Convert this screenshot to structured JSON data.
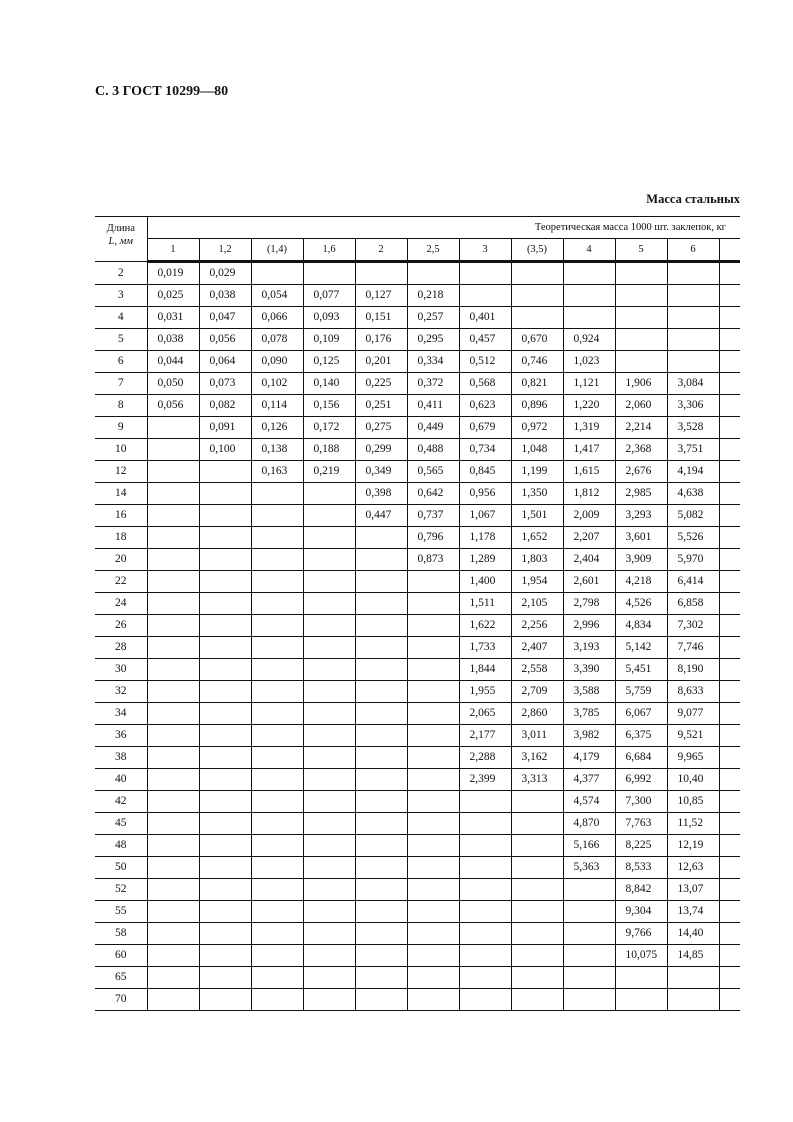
{
  "header": {
    "title": "С. 3 ГОСТ 10299—80"
  },
  "caption": "Масса стальных",
  "table": {
    "length_header": [
      "Длина",
      "L, мм"
    ],
    "group_header": "Теоретическая масса 1000 шт. заклепок, кг",
    "diameters": [
      "1",
      "1,2",
      "(1,4)",
      "1,6",
      "2",
      "2,5",
      "3",
      "(3,5)",
      "4",
      "5",
      "6",
      ""
    ],
    "rows": [
      {
        "L": "2",
        "v": [
          "0,019",
          "0,029",
          "",
          "",
          "",
          "",
          "",
          "",
          "",
          "",
          ""
        ]
      },
      {
        "L": "3",
        "v": [
          "0,025",
          "0,038",
          "0,054",
          "0,077",
          "0,127",
          "0,218",
          "",
          "",
          "",
          "",
          ""
        ]
      },
      {
        "L": "4",
        "v": [
          "0,031",
          "0,047",
          "0,066",
          "0,093",
          "0,151",
          "0,257",
          "0,401",
          "",
          "",
          "",
          ""
        ]
      },
      {
        "L": "5",
        "v": [
          "0,038",
          "0,056",
          "0,078",
          "0,109",
          "0,176",
          "0,295",
          "0,457",
          "0,670",
          "0,924",
          "",
          ""
        ]
      },
      {
        "L": "6",
        "v": [
          "0,044",
          "0,064",
          "0,090",
          "0,125",
          "0,201",
          "0,334",
          "0,512",
          "0,746",
          "1,023",
          "",
          ""
        ]
      },
      {
        "L": "7",
        "v": [
          "0,050",
          "0,073",
          "0,102",
          "0,140",
          "0,225",
          "0,372",
          "0,568",
          "0,821",
          "1,121",
          "1,906",
          "3,084"
        ]
      },
      {
        "L": "8",
        "v": [
          "0,056",
          "0,082",
          "0,114",
          "0,156",
          "0,251",
          "0,411",
          "0,623",
          "0,896",
          "1,220",
          "2,060",
          "3,306"
        ]
      },
      {
        "L": "9",
        "v": [
          "",
          "0,091",
          "0,126",
          "0,172",
          "0,275",
          "0,449",
          "0,679",
          "0,972",
          "1,319",
          "2,214",
          "3,528"
        ]
      },
      {
        "L": "10",
        "v": [
          "",
          "0,100",
          "0,138",
          "0,188",
          "0,299",
          "0,488",
          "0,734",
          "1,048",
          "1,417",
          "2,368",
          "3,751"
        ]
      },
      {
        "L": "12",
        "v": [
          "",
          "",
          "0,163",
          "0,219",
          "0,349",
          "0,565",
          "0,845",
          "1,199",
          "1,615",
          "2,676",
          "4,194"
        ]
      },
      {
        "L": "14",
        "v": [
          "",
          "",
          "",
          "",
          "0,398",
          "0,642",
          "0,956",
          "1,350",
          "1,812",
          "2,985",
          "4,638"
        ]
      },
      {
        "L": "16",
        "v": [
          "",
          "",
          "",
          "",
          "0,447",
          "0,737",
          "1,067",
          "1,501",
          "2,009",
          "3,293",
          "5,082"
        ]
      },
      {
        "L": "18",
        "v": [
          "",
          "",
          "",
          "",
          "",
          "0,796",
          "1,178",
          "1,652",
          "2,207",
          "3,601",
          "5,526"
        ]
      },
      {
        "L": "20",
        "v": [
          "",
          "",
          "",
          "",
          "",
          "0,873",
          "1,289",
          "1,803",
          "2,404",
          "3,909",
          "5,970"
        ]
      },
      {
        "L": "22",
        "v": [
          "",
          "",
          "",
          "",
          "",
          "",
          "1,400",
          "1,954",
          "2,601",
          "4,218",
          "6,414"
        ]
      },
      {
        "L": "24",
        "v": [
          "",
          "",
          "",
          "",
          "",
          "",
          "1,511",
          "2,105",
          "2,798",
          "4,526",
          "6,858"
        ]
      },
      {
        "L": "26",
        "v": [
          "",
          "",
          "",
          "",
          "",
          "",
          "1,622",
          "2,256",
          "2,996",
          "4,834",
          "7,302"
        ]
      },
      {
        "L": "28",
        "v": [
          "",
          "",
          "",
          "",
          "",
          "",
          "1,733",
          "2,407",
          "3,193",
          "5,142",
          "7,746"
        ]
      },
      {
        "L": "30",
        "v": [
          "",
          "",
          "",
          "",
          "",
          "",
          "1,844",
          "2,558",
          "3,390",
          "5,451",
          "8,190"
        ]
      },
      {
        "L": "32",
        "v": [
          "",
          "",
          "",
          "",
          "",
          "",
          "1,955",
          "2,709",
          "3,588",
          "5,759",
          "8,633"
        ]
      },
      {
        "L": "34",
        "v": [
          "",
          "",
          "",
          "",
          "",
          "",
          "2,065",
          "2,860",
          "3,785",
          "6,067",
          "9,077"
        ]
      },
      {
        "L": "36",
        "v": [
          "",
          "",
          "",
          "",
          "",
          "",
          "2,177",
          "3,011",
          "3,982",
          "6,375",
          "9,521"
        ]
      },
      {
        "L": "38",
        "v": [
          "",
          "",
          "",
          "",
          "",
          "",
          "2,288",
          "3,162",
          "4,179",
          "6,684",
          "9,965"
        ]
      },
      {
        "L": "40",
        "v": [
          "",
          "",
          "",
          "",
          "",
          "",
          "2,399",
          "3,313",
          "4,377",
          "6,992",
          "10,40"
        ]
      },
      {
        "L": "42",
        "v": [
          "",
          "",
          "",
          "",
          "",
          "",
          "",
          "",
          "4,574",
          "7,300",
          "10,85"
        ]
      },
      {
        "L": "45",
        "v": [
          "",
          "",
          "",
          "",
          "",
          "",
          "",
          "",
          "4,870",
          "7,763",
          "11,52"
        ]
      },
      {
        "L": "48",
        "v": [
          "",
          "",
          "",
          "",
          "",
          "",
          "",
          "",
          "5,166",
          "8,225",
          "12,19"
        ]
      },
      {
        "L": "50",
        "v": [
          "",
          "",
          "",
          "",
          "",
          "",
          "",
          "",
          "5,363",
          "8,533",
          "12,63"
        ]
      },
      {
        "L": "52",
        "v": [
          "",
          "",
          "",
          "",
          "",
          "",
          "",
          "",
          "",
          "8,842",
          "13,07"
        ]
      },
      {
        "L": "55",
        "v": [
          "",
          "",
          "",
          "",
          "",
          "",
          "",
          "",
          "",
          "9,304",
          "13,74"
        ]
      },
      {
        "L": "58",
        "v": [
          "",
          "",
          "",
          "",
          "",
          "",
          "",
          "",
          "",
          "9,766",
          "14,40"
        ]
      },
      {
        "L": "60",
        "v": [
          "",
          "",
          "",
          "",
          "",
          "",
          "",
          "",
          "",
          "10,075",
          "14,85"
        ]
      },
      {
        "L": "65",
        "v": [
          "",
          "",
          "",
          "",
          "",
          "",
          "",
          "",
          "",
          "",
          ""
        ]
      },
      {
        "L": "70",
        "v": [
          "",
          "",
          "",
          "",
          "",
          "",
          "",
          "",
          "",
          "",
          ""
        ]
      }
    ]
  }
}
